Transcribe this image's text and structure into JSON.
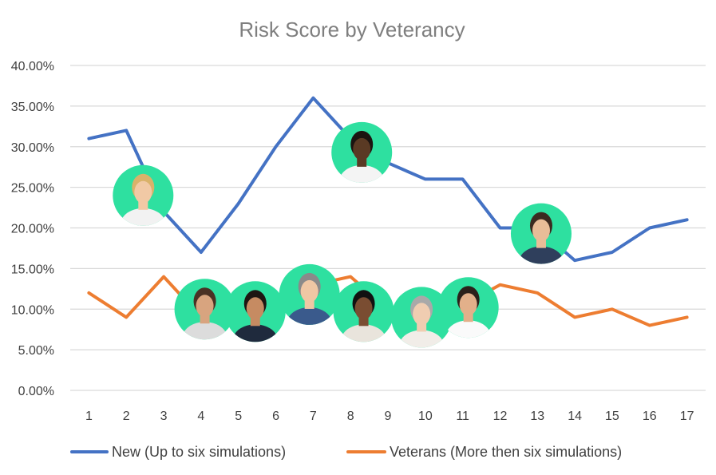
{
  "chart_data": {
    "type": "line",
    "title": "Risk Score by Veterancy",
    "xlabel": "",
    "ylabel": "",
    "x": [
      1,
      2,
      3,
      4,
      5,
      6,
      7,
      8,
      9,
      10,
      11,
      12,
      13,
      14,
      15,
      16,
      17
    ],
    "x_tick_labels": [
      "1",
      "2",
      "3",
      "4",
      "5",
      "6",
      "7",
      "8",
      "9",
      "10",
      "11",
      "12",
      "13",
      "14",
      "15",
      "16",
      "17"
    ],
    "ylim": [
      0,
      40
    ],
    "y_ticks": [
      0,
      5,
      10,
      15,
      20,
      25,
      30,
      35,
      40
    ],
    "y_tick_labels": [
      "0.00%",
      "5.00%",
      "10.00%",
      "15.00%",
      "20.00%",
      "25.00%",
      "30.00%",
      "35.00%",
      "40.00%"
    ],
    "grid": true,
    "legend_position": "bottom",
    "series": [
      {
        "name": "New (Up to six simulations)",
        "color": "#4472c4",
        "values": [
          31,
          32,
          22,
          17,
          23,
          30,
          36,
          31,
          28,
          26,
          26,
          20,
          20,
          16,
          17,
          20,
          21
        ]
      },
      {
        "name": "Veterans (More then six simulations)",
        "color": "#ed7d31",
        "values": [
          12,
          9,
          14,
          9,
          9.5,
          9.5,
          13,
          14,
          10,
          10,
          10.5,
          13,
          12,
          9,
          10,
          8,
          9
        ]
      }
    ],
    "avatars": [
      {
        "icon": "woman-glasses-portrait",
        "x": 2.45,
        "y": 24
      },
      {
        "icon": "bearded-man-portrait",
        "x": 8.3,
        "y": 29.3
      },
      {
        "icon": "young-man-portrait",
        "x": 13.1,
        "y": 19.3
      },
      {
        "icon": "curly-hair-person-portrait",
        "x": 4.1,
        "y": 10
      },
      {
        "icon": "businesswoman-portrait",
        "x": 5.45,
        "y": 9.7
      },
      {
        "icon": "older-man-glasses-portrait",
        "x": 6.9,
        "y": 11.8
      },
      {
        "icon": "woman-hair-bun-portrait",
        "x": 8.35,
        "y": 9.7
      },
      {
        "icon": "older-woman-portrait",
        "x": 9.9,
        "y": 9
      },
      {
        "icon": "man-on-phone-portrait",
        "x": 11.15,
        "y": 10.2
      }
    ],
    "colors": {
      "grid": "#d9d9d9",
      "avatar_background": "#2ee0a0",
      "title": "#7f7f7f",
      "text": "#404040"
    }
  }
}
